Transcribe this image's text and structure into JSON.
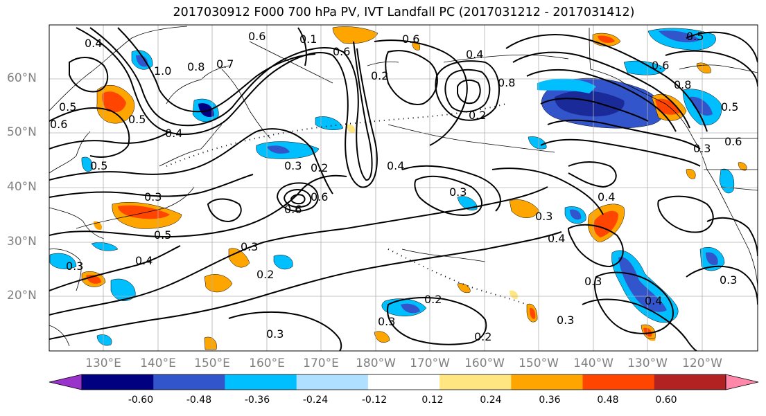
{
  "title": "2017030912 F000 700 hPa PV, IVT Landfall PC (2017031212 - 2017031412)",
  "lat_labels": [
    "60°N",
    "50°N",
    "40°N",
    "30°N",
    "20°N"
  ],
  "lon_labels": [
    "130°E",
    "140°E",
    "150°E",
    "160°E",
    "170°E",
    "180°W",
    "170°W",
    "160°W",
    "150°W",
    "140°W",
    "130°W",
    "120°W"
  ],
  "colorbar": {
    "colors": [
      "#9933cc",
      "#000080",
      "#3355cc",
      "#00bfff",
      "#b0e0ff",
      "#ffffff",
      "#ffe680",
      "#ffa500",
      "#ff4500",
      "#b22222",
      "#ff88aa"
    ],
    "tick_labels": [
      "-0.60",
      "-0.48",
      "-0.36",
      "-0.24",
      "-0.12",
      "0.12",
      "0.24",
      "0.36",
      "0.48",
      "0.60"
    ]
  },
  "contour_labels": [
    "0.4",
    "0.6",
    "0.6",
    "0.1",
    "0.6",
    "0.4",
    "0.2",
    "0.5",
    "1.0",
    "0.8",
    "0.7",
    "0.5",
    "0.4",
    "0.3",
    "0.2",
    "0.5",
    "0.3",
    "0.5",
    "0.6",
    "0.8",
    "0.4",
    "0.3",
    "0.4",
    "0.3",
    "0.6",
    "0.2",
    "0.3",
    "0.4",
    "0.3",
    "0.4",
    "0.3",
    "0.2",
    "0.3",
    "0.2",
    "0.3",
    "0.3",
    "0.3",
    "0.4",
    "0.5",
    "0.6",
    "0.8",
    "0.6",
    "0.5",
    "0.3",
    "0.6",
    "0.2"
  ]
}
